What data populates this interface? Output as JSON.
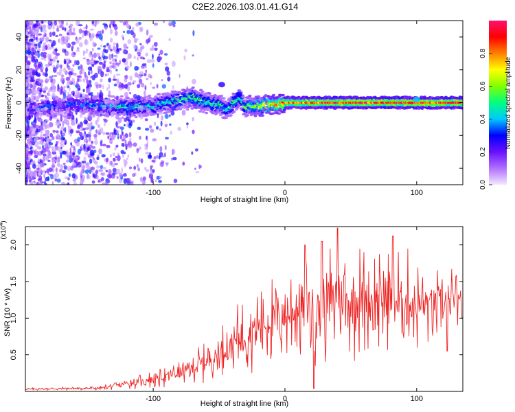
{
  "title": "C2E2.2026.103.01.41.G14",
  "chart_data": [
    {
      "type": "heatmap",
      "title": "C2E2.2026.103.01.41.G14",
      "xlabel": "Height of straight line (km)",
      "ylabel": "Frequency (Hz)",
      "xlim": [
        -197,
        135
      ],
      "ylim": [
        -50,
        50
      ],
      "xticks": [
        -100,
        0,
        100
      ],
      "xtick_labels": [
        "-100",
        "0",
        "100"
      ],
      "yticks": [
        -40,
        -20,
        0,
        20,
        40
      ],
      "ytick_labels": [
        "-40",
        "-20",
        "0",
        "20",
        "40"
      ],
      "colorbar": {
        "label": "Normalized spectral amplitude",
        "range": [
          0.0,
          1.0
        ],
        "ticks": [
          0.0,
          0.2,
          0.4,
          0.6,
          0.8
        ],
        "tick_labels": [
          "0.0",
          "0.2",
          "0.4",
          "0.6",
          "0.8"
        ],
        "colormap": [
          "#f4e8ff",
          "#b070ff",
          "#6a10ff",
          "#0000ff",
          "#00c8ff",
          "#00ff80",
          "#80ff00",
          "#ffff00",
          "#ff8000",
          "#ff0000",
          "#ff1070"
        ]
      },
      "ridge": {
        "x": [
          -197,
          -180,
          -160,
          -140,
          -120,
          -100,
          -80,
          -70,
          -60,
          -50,
          -45,
          -40,
          -35,
          -30,
          -20,
          -10,
          0,
          20,
          40,
          60,
          80,
          100,
          135
        ],
        "freq": [
          -4,
          -3,
          -1,
          -2,
          -3,
          -2,
          2,
          3,
          0,
          -1,
          -4,
          -1,
          3,
          -2,
          -2,
          -1,
          0,
          0,
          0,
          0,
          0,
          0,
          0
        ],
        "amplitude": [
          0.3,
          0.35,
          0.35,
          0.4,
          0.45,
          0.45,
          0.5,
          0.55,
          0.5,
          0.5,
          0.45,
          0.55,
          0.5,
          0.55,
          0.65,
          0.75,
          0.85,
          0.9,
          0.95,
          0.95,
          0.95,
          0.95,
          0.95
        ]
      },
      "extra_features": [
        {
          "x": -48,
          "freq": 11,
          "amplitude": 0.25
        },
        {
          "x": -35,
          "freq": 5,
          "amplitude": 0.3
        },
        {
          "x": 100,
          "freq": 2,
          "amplitude": 0.4
        }
      ]
    },
    {
      "type": "line",
      "xlabel": "Height of straight line (km)",
      "ylabel": "SNR (10 * v/v)",
      "y_multiplier_label": "(x10^4)",
      "y_multiplier_base": "(x10",
      "y_multiplier_exp": "4",
      "y_multiplier_close": ")",
      "xlim": [
        -197,
        135
      ],
      "ylim": [
        0,
        22500
      ],
      "xticks": [
        -100,
        0,
        100
      ],
      "xtick_labels": [
        "-100",
        "0",
        "100"
      ],
      "yticks": [
        5000,
        10000,
        15000,
        20000
      ],
      "ytick_labels": [
        "0.5",
        "1.0",
        "1.5",
        "2.0"
      ],
      "color": "#ee2222",
      "series": [
        {
          "name": "SNR",
          "x": [
            -197,
            -180,
            -160,
            -140,
            -125,
            -110,
            -95,
            -80,
            -70,
            -60,
            -50,
            -40,
            -30,
            -20,
            -10,
            0,
            10,
            20,
            30,
            40,
            50,
            60,
            70,
            80,
            90,
            100,
            110,
            120,
            130,
            135
          ],
          "trend": [
            300,
            350,
            400,
            450,
            900,
            1400,
            1800,
            2500,
            3200,
            4000,
            5200,
            6500,
            7800,
            9000,
            9800,
            10500,
            11000,
            11500,
            12000,
            12300,
            12500,
            12600,
            12700,
            12600,
            12300,
            11800,
            11700,
            12000,
            12200,
            11500
          ],
          "amplitude": [
            200,
            250,
            300,
            350,
            700,
            1100,
            1400,
            1900,
            2400,
            2900,
            3600,
            4600,
            5500,
            6500,
            7000,
            7400,
            7800,
            8200,
            8600,
            8900,
            9000,
            9000,
            8900,
            8600,
            8000,
            6800,
            6000,
            5500,
            4500,
            3500
          ],
          "peaks": [
            {
              "x": 40,
              "y": 22300
            },
            {
              "x": 82,
              "y": 21200
            },
            {
              "x": 28,
              "y": 20500
            },
            {
              "x": 15,
              "y": 20000
            }
          ],
          "dips": [
            {
              "x": 22,
              "y": 400
            },
            {
              "x": 123,
              "y": 5500
            }
          ]
        }
      ]
    }
  ]
}
